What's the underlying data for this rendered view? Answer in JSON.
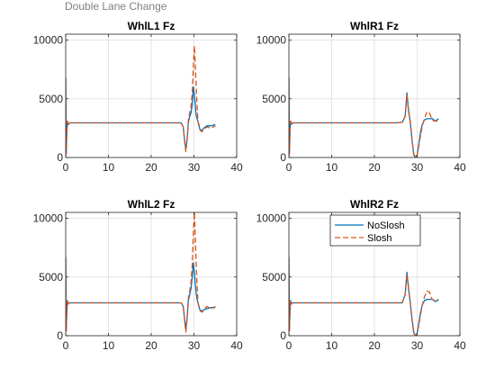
{
  "figure": {
    "suptitle": "Double Lane Change"
  },
  "chart_data": [
    {
      "type": "line",
      "title": "WhlL1 Fz",
      "xlabel": "",
      "ylabel": "",
      "xlim": [
        0,
        40
      ],
      "ylim": [
        0,
        10500
      ],
      "xticks": [
        0,
        10,
        20,
        30,
        40
      ],
      "yticks": [
        0,
        5000,
        10000
      ],
      "ytick_labels": [
        "0",
        "5000",
        "10000"
      ],
      "grid": true,
      "legend": null,
      "series": [
        {
          "name": "NoSlosh",
          "color": "#0072bd",
          "dash": "solid",
          "x": [
            0,
            0.1,
            0.25,
            0.4,
            0.6,
            0.8,
            1.0,
            1.5,
            2,
            5,
            10,
            15,
            20,
            25,
            27,
            27.5,
            27.8,
            28.1,
            28.4,
            28.7,
            29.0,
            29.3,
            29.6,
            29.9,
            30.2,
            30.5,
            30.8,
            31.1,
            31.4,
            31.8,
            32.3,
            33,
            34,
            35
          ],
          "y": [
            6800,
            300,
            2100,
            3100,
            2800,
            2900,
            2950,
            2950,
            2950,
            2950,
            2950,
            2950,
            2950,
            2950,
            2950,
            2600,
            1500,
            700,
            1500,
            3000,
            3500,
            3800,
            4500,
            6000,
            5000,
            3600,
            3200,
            2900,
            2400,
            2300,
            2500,
            2700,
            2700,
            2800
          ]
        },
        {
          "name": "Slosh",
          "color": "#d95319",
          "dash": "6,3",
          "x": [
            0,
            0.1,
            0.25,
            0.4,
            0.6,
            0.8,
            1.0,
            1.5,
            2,
            5,
            10,
            15,
            20,
            25,
            27,
            27.5,
            27.8,
            28.1,
            28.4,
            28.7,
            29.0,
            29.3,
            29.6,
            29.9,
            30.1,
            30.3,
            30.6,
            30.9,
            31.2,
            31.5,
            31.9,
            32.3,
            33,
            34,
            35
          ],
          "y": [
            6800,
            300,
            2100,
            3100,
            2800,
            2900,
            2950,
            2950,
            2950,
            2950,
            2950,
            2950,
            2950,
            2950,
            2950,
            2600,
            1400,
            500,
            1500,
            3200,
            3800,
            4300,
            5500,
            8000,
            9500,
            8000,
            5500,
            3200,
            2500,
            2300,
            2200,
            2400,
            2600,
            2500,
            2700
          ]
        }
      ]
    },
    {
      "type": "line",
      "title": "WhlR1 Fz",
      "xlabel": "",
      "ylabel": "",
      "xlim": [
        0,
        40
      ],
      "ylim": [
        0,
        10500
      ],
      "xticks": [
        0,
        10,
        20,
        30,
        40
      ],
      "yticks": [
        0,
        5000,
        10000
      ],
      "ytick_labels": [
        "0",
        "5000",
        "10000"
      ],
      "grid": true,
      "legend": null,
      "series": [
        {
          "name": "NoSlosh",
          "color": "#0072bd",
          "dash": "solid",
          "x": [
            0,
            0.1,
            0.25,
            0.4,
            0.6,
            0.8,
            1.0,
            1.5,
            2,
            5,
            10,
            15,
            20,
            25,
            26.5,
            27.2,
            27.6,
            28.0,
            28.4,
            28.8,
            29.2,
            29.6,
            30.0,
            30.4,
            30.8,
            31.2,
            31.7,
            32.3,
            33,
            33.6,
            34.2,
            35
          ],
          "y": [
            6800,
            300,
            2200,
            3100,
            2850,
            2900,
            2950,
            2950,
            2950,
            2950,
            2950,
            2950,
            2950,
            2950,
            3000,
            3500,
            5500,
            4000,
            3000,
            1500,
            300,
            0,
            200,
            1200,
            2200,
            2800,
            3200,
            3300,
            3300,
            3300,
            3100,
            3300
          ]
        },
        {
          "name": "Slosh",
          "color": "#d95319",
          "dash": "6,3",
          "x": [
            0,
            0.1,
            0.25,
            0.4,
            0.6,
            0.8,
            1.0,
            1.5,
            2,
            5,
            10,
            15,
            20,
            25,
            26.5,
            27.2,
            27.6,
            28.0,
            28.4,
            28.8,
            29.2,
            29.6,
            30.0,
            30.4,
            30.8,
            31.2,
            31.7,
            32.3,
            32.9,
            33.5,
            34.1,
            35
          ],
          "y": [
            6800,
            300,
            2200,
            3100,
            2850,
            2900,
            2950,
            2950,
            2950,
            2950,
            2950,
            2950,
            2950,
            2950,
            3000,
            3500,
            5300,
            3900,
            3000,
            1500,
            200,
            0,
            200,
            1000,
            1900,
            2700,
            3300,
            3900,
            3800,
            3200,
            3100,
            3100
          ]
        }
      ]
    },
    {
      "type": "line",
      "title": "WhlL2 Fz",
      "xlabel": "",
      "ylabel": "",
      "xlim": [
        0,
        40
      ],
      "ylim": [
        0,
        10500
      ],
      "xticks": [
        0,
        10,
        20,
        30,
        40
      ],
      "yticks": [
        0,
        5000,
        10000
      ],
      "ytick_labels": [
        "0",
        "5000",
        "10000"
      ],
      "grid": true,
      "legend": null,
      "series": [
        {
          "name": "NoSlosh",
          "color": "#0072bd",
          "dash": "solid",
          "x": [
            0,
            0.1,
            0.25,
            0.4,
            0.6,
            0.8,
            1.0,
            1.5,
            2,
            5,
            10,
            15,
            20,
            25,
            27,
            27.5,
            27.8,
            28.1,
            28.4,
            28.7,
            29.0,
            29.3,
            29.6,
            29.9,
            30.2,
            30.5,
            30.8,
            31.1,
            31.4,
            31.8,
            32.3,
            33,
            34,
            35
          ],
          "y": [
            6700,
            400,
            2000,
            3000,
            2700,
            2800,
            2800,
            2800,
            2800,
            2800,
            2800,
            2800,
            2800,
            2800,
            2800,
            2500,
            1400,
            500,
            1500,
            3000,
            3500,
            4000,
            5000,
            6200,
            5000,
            3600,
            3000,
            2600,
            2200,
            2100,
            2200,
            2300,
            2400,
            2400
          ]
        },
        {
          "name": "Slosh",
          "color": "#d95319",
          "dash": "6,3",
          "x": [
            0,
            0.1,
            0.25,
            0.4,
            0.6,
            0.8,
            1.0,
            1.5,
            2,
            5,
            10,
            15,
            20,
            25,
            27,
            27.5,
            27.8,
            28.1,
            28.4,
            28.7,
            29.0,
            29.3,
            29.6,
            29.9,
            30.1,
            30.3,
            30.6,
            30.9,
            31.2,
            31.5,
            31.9,
            32.3,
            33,
            34,
            35
          ],
          "y": [
            6700,
            400,
            2000,
            3000,
            2700,
            2800,
            2800,
            2800,
            2800,
            2800,
            2800,
            2800,
            2800,
            2800,
            2800,
            2500,
            1300,
            300,
            1500,
            3200,
            3800,
            4500,
            6000,
            9000,
            10500,
            8500,
            5500,
            3000,
            2300,
            2100,
            2000,
            2200,
            2500,
            2300,
            2500
          ]
        }
      ]
    },
    {
      "type": "line",
      "title": "WhlR2 Fz",
      "xlabel": "",
      "ylabel": "",
      "xlim": [
        0,
        40
      ],
      "ylim": [
        0,
        10500
      ],
      "xticks": [
        0,
        10,
        20,
        30,
        40
      ],
      "yticks": [
        0,
        5000,
        10000
      ],
      "ytick_labels": [
        "0",
        "5000",
        "10000"
      ],
      "grid": true,
      "legend": "top-right",
      "series": [
        {
          "name": "NoSlosh",
          "color": "#0072bd",
          "dash": "solid",
          "x": [
            0,
            0.1,
            0.25,
            0.4,
            0.6,
            0.8,
            1.0,
            1.5,
            2,
            5,
            10,
            15,
            20,
            25,
            26.5,
            27.2,
            27.6,
            28.0,
            28.4,
            28.8,
            29.2,
            29.6,
            30.0,
            30.4,
            30.8,
            31.2,
            31.7,
            32.3,
            33,
            33.6,
            34.2,
            35
          ],
          "y": [
            6700,
            400,
            2100,
            3000,
            2700,
            2800,
            2800,
            2800,
            2800,
            2800,
            2800,
            2800,
            2800,
            2800,
            2800,
            3500,
            5400,
            4000,
            2800,
            1400,
            300,
            0,
            200,
            1100,
            2000,
            2600,
            3000,
            3100,
            3100,
            3100,
            2900,
            3100
          ]
        },
        {
          "name": "Slosh",
          "color": "#d95319",
          "dash": "6,3",
          "x": [
            0,
            0.1,
            0.25,
            0.4,
            0.6,
            0.8,
            1.0,
            1.5,
            2,
            5,
            10,
            15,
            20,
            25,
            26.5,
            27.2,
            27.6,
            28.0,
            28.4,
            28.8,
            29.2,
            29.6,
            30.0,
            30.4,
            30.8,
            31.2,
            31.7,
            32.3,
            32.9,
            33.5,
            34.1,
            35
          ],
          "y": [
            6700,
            400,
            2100,
            3000,
            2700,
            2800,
            2800,
            2800,
            2800,
            2800,
            2800,
            2800,
            2800,
            2800,
            2800,
            3500,
            5200,
            3900,
            2800,
            1400,
            200,
            0,
            200,
            900,
            1800,
            2600,
            3300,
            3800,
            3700,
            3100,
            3000,
            3000
          ]
        }
      ]
    }
  ]
}
